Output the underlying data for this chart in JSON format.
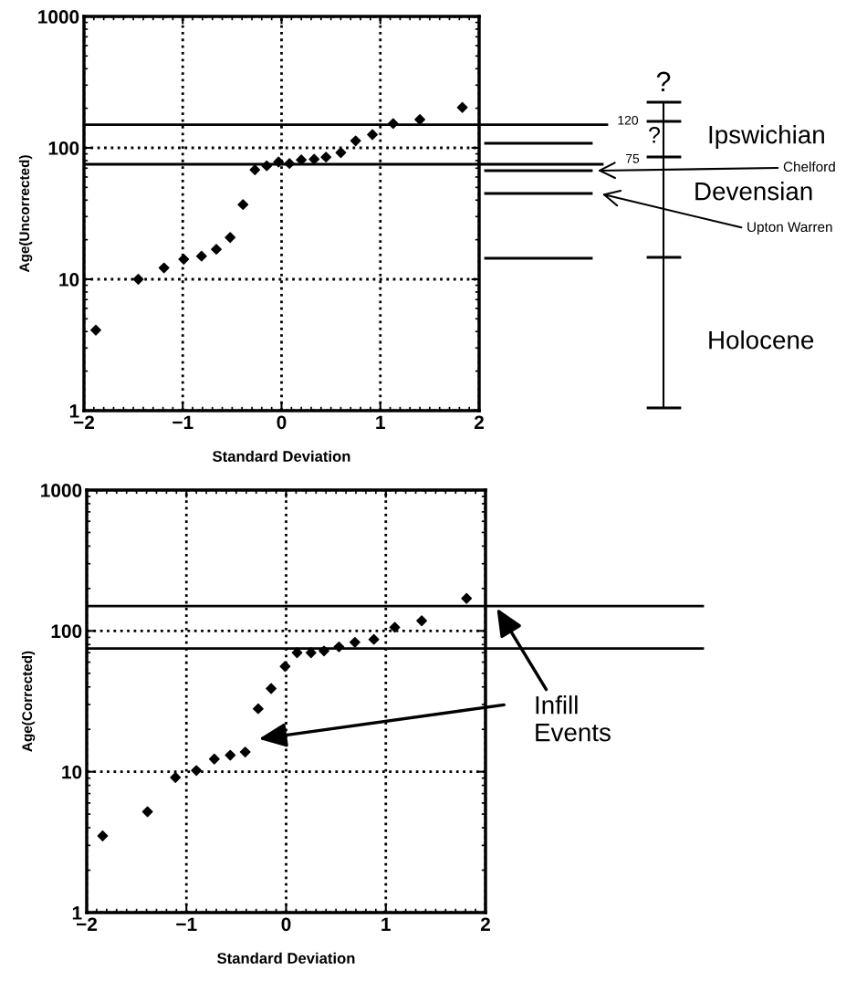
{
  "chart_data": [
    {
      "type": "scatter",
      "xlabel": "Standard Deviation",
      "ylabel": "Age(Uncorrected)",
      "log": "y",
      "grid": true,
      "marker": "diamond",
      "xlim": [
        -2,
        2
      ],
      "xticks": [
        -2,
        -1,
        0,
        1,
        2
      ],
      "ylim": [
        1,
        1000
      ],
      "yticks": [
        1,
        10,
        100,
        1000
      ],
      "series": [
        {
          "color": "#000000",
          "x": [
            -1.88,
            -1.45,
            -1.19,
            -0.99,
            -0.81,
            -0.66,
            -0.52,
            -0.39,
            -0.27,
            -0.15,
            -0.03,
            0.08,
            0.2,
            0.33,
            0.45,
            0.6,
            0.75,
            0.92,
            1.13,
            1.4,
            1.83
          ],
          "values": [
            4.1,
            10,
            12.2,
            14.2,
            15,
            16.9,
            20.8,
            37,
            68,
            73,
            78,
            76,
            81,
            82,
            85,
            92,
            113,
            126,
            153,
            164,
            203
          ]
        }
      ],
      "ref_lines": [
        {
          "axis": "y",
          "value": 150,
          "color": "#000000"
        },
        {
          "axis": "y",
          "value": 75,
          "color": "#000000"
        }
      ],
      "annotations": [
        "?",
        "120",
        "?",
        "75",
        "Ipswichian",
        "Chelford",
        "Devensian",
        "Upton Warren",
        "Holocene"
      ]
    },
    {
      "type": "scatter",
      "xlabel": "Standard Deviation",
      "ylabel": "Age(Corrected)",
      "log": "y",
      "grid": true,
      "marker": "diamond",
      "xlim": [
        -2,
        2
      ],
      "xticks": [
        -2,
        -1,
        0,
        1,
        2
      ],
      "ylim": [
        1,
        1000
      ],
      "yticks": [
        1,
        10,
        100,
        1000
      ],
      "series": [
        {
          "color": "#000000",
          "x": [
            -1.84,
            -1.39,
            -1.11,
            -0.9,
            -0.72,
            -0.56,
            -0.41,
            -0.28,
            -0.15,
            -0.01,
            0.11,
            0.25,
            0.38,
            0.53,
            0.69,
            0.88,
            1.09,
            1.36,
            1.81
          ],
          "values": [
            3.5,
            5.2,
            9.1,
            10.2,
            12.3,
            13.1,
            13.8,
            28,
            39,
            56,
            70,
            70,
            72,
            77,
            83,
            87,
            106,
            118,
            170
          ]
        }
      ],
      "ref_lines": [
        {
          "axis": "y",
          "value": 150,
          "color": "#000000"
        },
        {
          "axis": "y",
          "value": 75,
          "color": "#000000"
        }
      ],
      "annotations": [
        "Infill\nEvents"
      ]
    }
  ]
}
